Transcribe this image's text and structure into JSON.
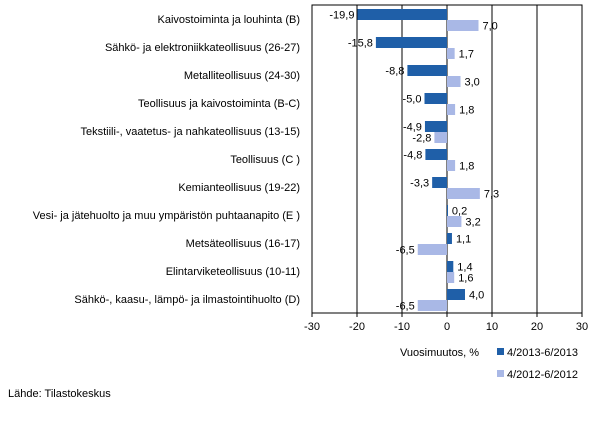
{
  "chart_data": {
    "type": "bar",
    "orientation": "horizontal",
    "categories": [
      "Kaivostoiminta ja louhinta (B)",
      "Sähkö- ja elektroniikkateollisuus (26-27)",
      "Metalliteollisuus (24-30)",
      "Teollisuus ja kaivostoiminta (B-C)",
      "Tekstiili-, vaatetus- ja nahkateollisuus (13-15)",
      "Teollisuus (C )",
      "Kemianteollisuus (19-22)",
      "Vesi- ja jätehuolto ja muu ympäristön puhtaanapito (E )",
      "Metsäteollisuus (16-17)",
      "Elintarviketeollisuus (10-11)",
      "Sähkö-, kaasu-, lämpö- ja ilmastointihuolto (D)"
    ],
    "series": [
      {
        "name": "4/2013-6/2013",
        "color": "#1f5fa8",
        "values": [
          -19.9,
          -15.8,
          -8.8,
          -5.0,
          -4.9,
          -4.8,
          -3.3,
          0.2,
          1.1,
          1.4,
          4.0
        ],
        "labels": [
          "-19,9",
          "-15,8",
          "-8,8",
          "-5,0",
          "-4,9",
          "-4,8",
          "-3,3",
          "0,2",
          "1,1",
          "1,4",
          "4,0"
        ]
      },
      {
        "name": "4/2012-6/2012",
        "color": "#a9b8e6",
        "values": [
          7.0,
          1.7,
          3.0,
          1.8,
          -2.8,
          1.8,
          7.3,
          3.2,
          -6.5,
          1.6,
          -6.5
        ],
        "labels": [
          "7,0",
          "1,7",
          "3,0",
          "1,8",
          "-2,8",
          "1,8",
          "7,3",
          "3,2",
          "-6,5",
          "1,6",
          "-6,5"
        ]
      }
    ],
    "xlim": [
      -30,
      30
    ],
    "ticks": [
      -30,
      -20,
      -10,
      0,
      10,
      20,
      30
    ],
    "tick_labels": [
      "-30",
      "-20",
      "-10",
      "0",
      "10",
      "20",
      "30"
    ],
    "xlabel": "Vuosimuutos, %",
    "grid": true,
    "legend_position": "bottom-right"
  },
  "source": "Lähde: Tilastokeskus"
}
